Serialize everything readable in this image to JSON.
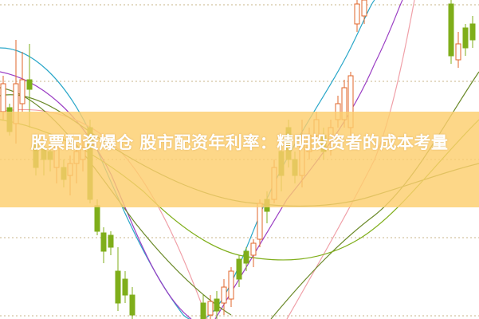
{
  "article": {
    "title": "股票配资爆仓 股市配资年利率：精明投资者的成本考量"
  },
  "colors": {
    "banner": "#fcd06e",
    "candle_up": "#e0662a",
    "candle_down": "#7fae1a",
    "ma_cyan": "#2aa7c9",
    "ma_purple": "#9b3fc4",
    "ma_pink": "#f0a0a8",
    "ma_olive": "#6b8a2a"
  }
}
